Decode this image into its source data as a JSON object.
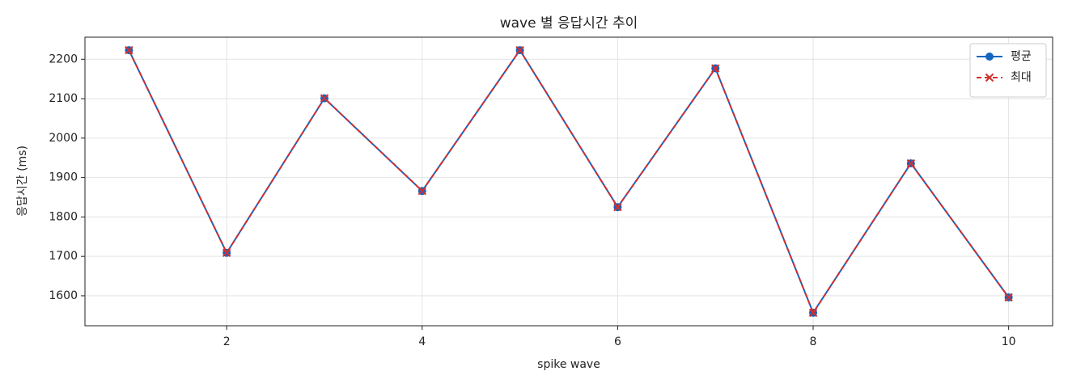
{
  "chart_data": {
    "type": "line",
    "title": "wave 별 응답시간 추이",
    "x_label": "spike wave",
    "y_label": "응답시간 (ms)",
    "x": [
      1,
      2,
      3,
      4,
      5,
      6,
      7,
      8,
      9,
      10
    ],
    "series": [
      {
        "name": "평균",
        "color": "#1565c0",
        "marker": "o",
        "dash": false,
        "values": [
          2223,
          1709,
          2101,
          1866,
          2223,
          1825,
          2177,
          1557,
          1936,
          1596
        ]
      },
      {
        "name": "최대",
        "color": "#d32f2f",
        "marker": "x",
        "dash": true,
        "values": [
          2223,
          1709,
          2101,
          1866,
          2223,
          1825,
          2177,
          1557,
          1936,
          1596
        ]
      }
    ],
    "xlim": [
      0.55,
      10.45
    ],
    "ylim": [
      1524,
      2256
    ],
    "xticks": [
      2,
      4,
      6,
      8,
      10
    ],
    "yticks": [
      1600,
      1700,
      1800,
      1900,
      2000,
      2100,
      2200
    ],
    "grid": true,
    "legend": "upper-right"
  }
}
